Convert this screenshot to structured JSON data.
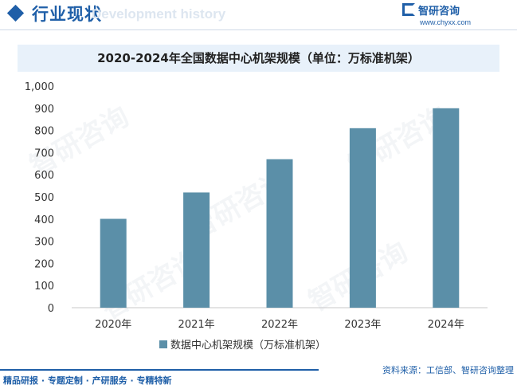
{
  "header": {
    "title": "行业现状",
    "subtitle": "Development history"
  },
  "logo": {
    "name": "智研咨询",
    "url": "www.chyxx.com"
  },
  "footer": {
    "left": "精品研报 · 专题定制 · 产研服务 · 专精特新",
    "right": "资料来源：工信部、智研咨询整理"
  },
  "watermark": "智研咨询",
  "chart_data": {
    "type": "bar",
    "title": "2020-2024年全国数据中心机架规模（单位：万标准机架）",
    "categories": [
      "2020年",
      "2021年",
      "2022年",
      "2023年",
      "2024年"
    ],
    "series": [
      {
        "name": "数据中心机架规模（万标准机架）",
        "values": [
          401,
          520,
          670,
          810,
          900
        ]
      }
    ],
    "ylim": [
      0,
      1000
    ],
    "yticks": [
      "0",
      "100",
      "200",
      "300",
      "400",
      "500",
      "600",
      "700",
      "800",
      "900",
      "1,000"
    ],
    "xlabel": "",
    "ylabel": "",
    "grid": false,
    "legend": "bottom",
    "colors": {
      "bar": "#5b8fa8"
    }
  }
}
